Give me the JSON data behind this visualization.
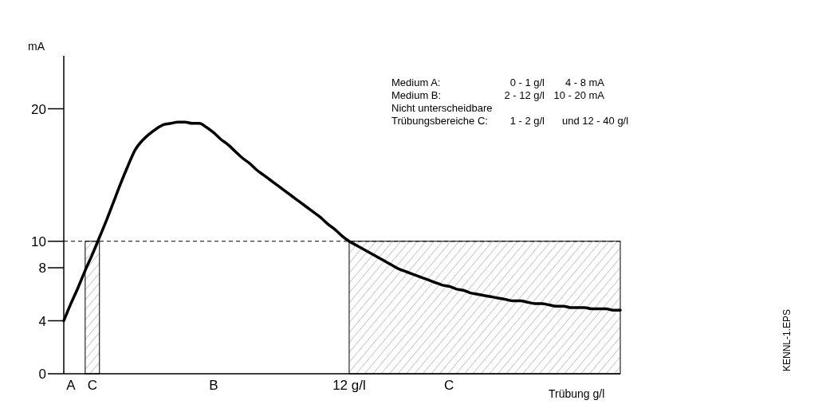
{
  "chart_data": {
    "type": "line",
    "xlabel": "Trübung g/l",
    "ylabel": "mA",
    "categories": [
      null,
      "A",
      null,
      null,
      "C",
      null,
      null,
      null,
      null,
      null,
      null,
      null,
      null,
      null,
      null,
      null,
      null,
      null,
      null,
      null,
      null,
      "B",
      null,
      null,
      null,
      null,
      null,
      null,
      null,
      null,
      null,
      null,
      null,
      null,
      null,
      null,
      null,
      null,
      null,
      null,
      "12 g/l",
      null,
      null,
      null,
      null,
      null,
      null,
      null,
      null,
      null,
      null,
      null,
      null,
      null,
      "C",
      null,
      null,
      null,
      null,
      null,
      null,
      null,
      null,
      null,
      null,
      null,
      null,
      null,
      null,
      null,
      null,
      null,
      null,
      null,
      null,
      null,
      null,
      null,
      null
    ],
    "series": [
      {
        "color": "#000000",
        "values": [
          4,
          5.3,
          6.5,
          7.8,
          9.0,
          10.3,
          11.6,
          13.0,
          14.4,
          15.7,
          16.9,
          17.6,
          18.1,
          18.5,
          18.8,
          18.9,
          19.0,
          19.0,
          18.9,
          18.9,
          18.6,
          18.2,
          17.7,
          17.3,
          16.8,
          16.3,
          15.9,
          15.4,
          15.0,
          14.6,
          14.2,
          13.8,
          13.4,
          13.0,
          12.6,
          12.2,
          11.8,
          11.3,
          10.9,
          10.4,
          10,
          9.7,
          9.4,
          9.1,
          8.8,
          8.5,
          8.2,
          7.9,
          7.7,
          7.5,
          7.3,
          7.1,
          6.9,
          6.7,
          6.6,
          6.4,
          6.3,
          6.1,
          6.0,
          5.9,
          5.8,
          5.7,
          5.6,
          5.5,
          5.5,
          5.4,
          5.3,
          5.3,
          5.2,
          5.1,
          5.1,
          5.0,
          5.0,
          5.0,
          4.9,
          4.9,
          4.9,
          4.8,
          4.8
        ]
      }
    ],
    "ylim": [
      0,
      24
    ],
    "yticks": [
      0,
      4,
      8,
      10,
      20
    ],
    "grid": false,
    "marker": "none",
    "line_style": "solid",
    "ref_lines": [
      {
        "axis": "y",
        "value": 10,
        "line_style": "dashed",
        "color": "#000000"
      }
    ],
    "annotations": [
      "Medium A:",
      "0 - 1 g/l",
      "4 - 8 mA",
      "Medium B:",
      "2 - 12 g/l",
      "10 - 20 mA",
      "Nicht unterscheidbare",
      "Trübungsbereiche C:",
      "1 - 2 g/l",
      "und 12 - 40 g/l",
      "KENNL-1.EPS"
    ]
  }
}
